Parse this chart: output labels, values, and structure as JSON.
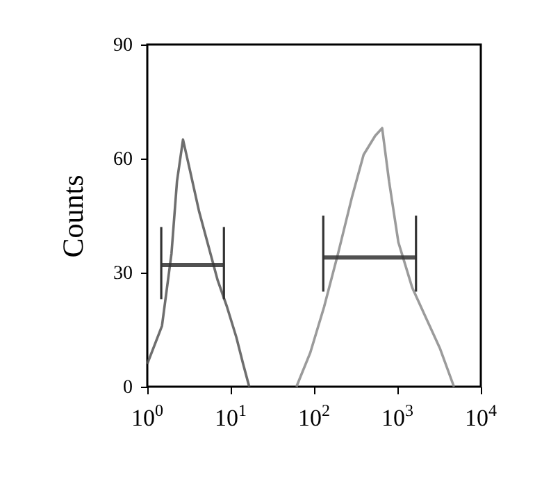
{
  "chart_data": {
    "type": "line",
    "ylabel": "Counts",
    "log": "x",
    "xlim": [
      1,
      10000
    ],
    "ylim": [
      0,
      90
    ],
    "xticks": [
      {
        "value": 1,
        "label": "10$^{0}$"
      },
      {
        "value": 10,
        "label": "10$^{1}$"
      },
      {
        "value": 100,
        "label": "10$^{2}$"
      },
      {
        "value": 1000,
        "label": "10$^{3}$"
      },
      {
        "value": 10000,
        "label": "10$^{4}$"
      }
    ],
    "yticks": [
      0,
      30,
      60,
      90
    ],
    "grid": false,
    "marker": "none",
    "line_style": "solid",
    "series": [
      {
        "color": "#555555",
        "x": [
          1,
          1.5,
          1.95,
          2.27,
          2.68,
          3.24,
          4.19,
          5.41,
          6.98,
          9.03,
          11.7,
          14.1,
          16.7
        ],
        "values": [
          6,
          16,
          35,
          54,
          65,
          57,
          46,
          37,
          28,
          21,
          13,
          6,
          0
        ]
      },
      {
        "color": "#8a8a8a",
        "x": [
          61.5,
          90.3,
          132,
          194,
          286,
          393,
          541,
          656,
          794,
          1026,
          1507,
          2209,
          3245,
          4764
        ],
        "values": [
          0,
          9,
          21,
          35,
          50,
          61,
          66,
          68,
          54,
          38,
          26,
          18,
          10,
          0
        ]
      },
      {
        "color": "#333333",
        "x": [
          1.47,
          8.3
        ],
        "values": [
          32,
          32
        ],
        "errors": [
          [
            23,
            42
          ],
          [
            23,
            42
          ]
        ]
      },
      {
        "color": "#333333",
        "x": [
          129,
          1670
        ],
        "values": [
          34,
          34
        ],
        "errors": [
          [
            25,
            45
          ],
          [
            25,
            45
          ]
        ]
      }
    ]
  }
}
